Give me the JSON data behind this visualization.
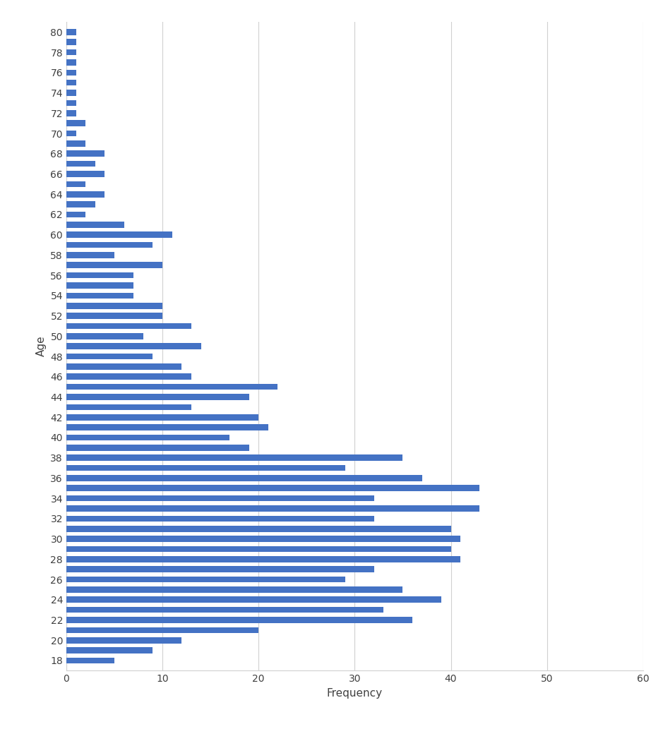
{
  "ages": [
    18,
    19,
    20,
    21,
    22,
    23,
    24,
    25,
    26,
    27,
    28,
    29,
    30,
    31,
    32,
    33,
    34,
    35,
    36,
    37,
    38,
    39,
    40,
    41,
    42,
    43,
    44,
    45,
    46,
    47,
    48,
    49,
    50,
    51,
    52,
    53,
    54,
    55,
    56,
    57,
    58,
    59,
    60,
    61,
    62,
    63,
    64,
    65,
    66,
    67,
    68,
    69,
    70,
    71,
    72,
    73,
    74,
    75,
    76,
    77,
    78,
    79,
    80
  ],
  "frequencies": [
    5,
    9,
    12,
    20,
    36,
    33,
    39,
    35,
    29,
    32,
    41,
    40,
    41,
    40,
    32,
    43,
    32,
    43,
    37,
    29,
    35,
    19,
    17,
    21,
    20,
    13,
    19,
    22,
    13,
    12,
    9,
    14,
    8,
    13,
    10,
    10,
    7,
    7,
    7,
    10,
    5,
    9,
    11,
    6,
    2,
    3,
    4,
    2,
    4,
    3,
    4,
    2,
    1,
    2,
    1,
    1,
    1,
    1,
    1,
    1,
    1,
    1,
    1
  ],
  "bar_color": "#4472C4",
  "xlabel": "Frequency",
  "ylabel": "Age",
  "xlim": [
    0,
    60
  ],
  "xticks": [
    0,
    10,
    20,
    30,
    40,
    50,
    60
  ],
  "yticks_labels": [
    18,
    20,
    22,
    24,
    26,
    28,
    30,
    32,
    34,
    36,
    38,
    40,
    42,
    44,
    46,
    48,
    50,
    52,
    54,
    56,
    58,
    60,
    62,
    64,
    66,
    68,
    70,
    72,
    74,
    76,
    78,
    80
  ],
  "background_color": "#ffffff",
  "grid_color": "#d0d0d0",
  "figsize": [
    9.39,
    10.33
  ],
  "dpi": 100
}
